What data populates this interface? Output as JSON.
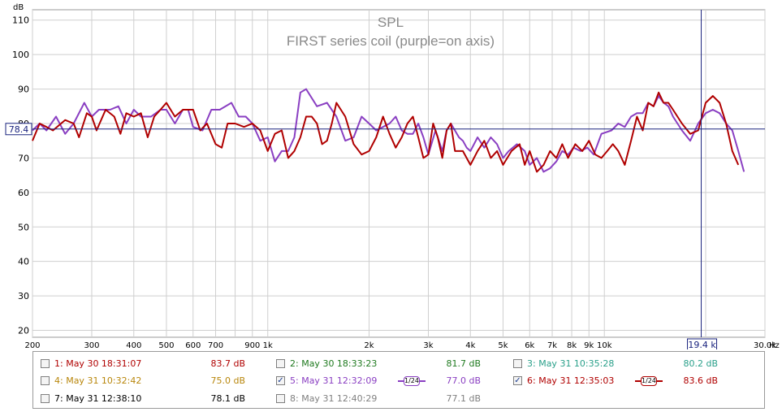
{
  "chart_data": {
    "type": "line",
    "title": "SPL",
    "subtitle": "FIRST series coil (purple=on axis)",
    "ylabel": "dB",
    "xlabel": "Hz",
    "x_scale": "log",
    "xlim": [
      200,
      30000
    ],
    "ylim": [
      18,
      113
    ],
    "y_ticks": [
      20,
      30,
      40,
      50,
      60,
      70,
      80,
      90,
      100,
      110
    ],
    "x_ticks": [
      {
        "v": 200,
        "label": "200"
      },
      {
        "v": 300,
        "label": "300"
      },
      {
        "v": 400,
        "label": "400"
      },
      {
        "v": 500,
        "label": "500"
      },
      {
        "v": 600,
        "label": "600"
      },
      {
        "v": 700,
        "label": "700"
      },
      {
        "v": 900,
        "label": "900"
      },
      {
        "v": 1000,
        "label": "1k"
      },
      {
        "v": 2000,
        "label": "2k"
      },
      {
        "v": 3000,
        "label": "3k"
      },
      {
        "v": 4000,
        "label": "4k"
      },
      {
        "v": 5000,
        "label": "5k"
      },
      {
        "v": 6000,
        "label": "6k"
      },
      {
        "v": 7000,
        "label": "7k"
      },
      {
        "v": 8000,
        "label": "8k"
      },
      {
        "v": 9000,
        "label": "9k"
      },
      {
        "v": 10000,
        "label": "10k"
      },
      {
        "v": 30000,
        "label": "30.0k"
      }
    ],
    "grid_x": [
      200,
      300,
      400,
      500,
      600,
      700,
      800,
      900,
      1000,
      2000,
      3000,
      4000,
      5000,
      6000,
      7000,
      8000,
      9000,
      10000,
      20000,
      30000
    ],
    "grid": true,
    "cursor": {
      "x": 19400,
      "y": 78.4,
      "x_label": "19.4 k",
      "y_label": "78.4"
    },
    "series": [
      {
        "name": "5: May 31 12:32:09",
        "color": "#8a3fc2",
        "points": [
          [
            200,
            78
          ],
          [
            210,
            80
          ],
          [
            220,
            78
          ],
          [
            235,
            82
          ],
          [
            250,
            77
          ],
          [
            265,
            80
          ],
          [
            285,
            86
          ],
          [
            300,
            82
          ],
          [
            315,
            84
          ],
          [
            340,
            84
          ],
          [
            360,
            85
          ],
          [
            380,
            80
          ],
          [
            400,
            84
          ],
          [
            420,
            82
          ],
          [
            450,
            82
          ],
          [
            480,
            84
          ],
          [
            500,
            84
          ],
          [
            530,
            80
          ],
          [
            560,
            84
          ],
          [
            580,
            84
          ],
          [
            600,
            79
          ],
          [
            640,
            78
          ],
          [
            680,
            84
          ],
          [
            720,
            84
          ],
          [
            780,
            86
          ],
          [
            820,
            82
          ],
          [
            860,
            82
          ],
          [
            900,
            80
          ],
          [
            950,
            75
          ],
          [
            1000,
            76
          ],
          [
            1050,
            69
          ],
          [
            1100,
            72
          ],
          [
            1150,
            72
          ],
          [
            1200,
            76
          ],
          [
            1250,
            89
          ],
          [
            1300,
            90
          ],
          [
            1400,
            85
          ],
          [
            1500,
            86
          ],
          [
            1600,
            82
          ],
          [
            1700,
            75
          ],
          [
            1800,
            76
          ],
          [
            1900,
            82
          ],
          [
            2000,
            80
          ],
          [
            2100,
            78
          ],
          [
            2200,
            79
          ],
          [
            2300,
            80
          ],
          [
            2400,
            82
          ],
          [
            2500,
            78
          ],
          [
            2600,
            77
          ],
          [
            2700,
            77
          ],
          [
            2800,
            80
          ],
          [
            2900,
            76
          ],
          [
            3000,
            71
          ],
          [
            3150,
            78
          ],
          [
            3300,
            72
          ],
          [
            3400,
            78
          ],
          [
            3500,
            80
          ],
          [
            3700,
            76
          ],
          [
            3800,
            75
          ],
          [
            3900,
            73
          ],
          [
            4000,
            72
          ],
          [
            4200,
            76
          ],
          [
            4400,
            73
          ],
          [
            4600,
            76
          ],
          [
            4800,
            74
          ],
          [
            5000,
            70
          ],
          [
            5200,
            72
          ],
          [
            5500,
            74
          ],
          [
            5800,
            72
          ],
          [
            6000,
            68
          ],
          [
            6300,
            70
          ],
          [
            6600,
            66
          ],
          [
            6900,
            67
          ],
          [
            7200,
            69
          ],
          [
            7500,
            72
          ],
          [
            7800,
            71
          ],
          [
            8100,
            73
          ],
          [
            8500,
            72
          ],
          [
            8900,
            73
          ],
          [
            9300,
            71
          ],
          [
            9800,
            77
          ],
          [
            10500,
            78
          ],
          [
            11000,
            80
          ],
          [
            11500,
            79
          ],
          [
            12000,
            82
          ],
          [
            12500,
            83
          ],
          [
            13000,
            83
          ],
          [
            13500,
            86
          ],
          [
            14000,
            85
          ],
          [
            14500,
            88
          ],
          [
            15000,
            86
          ],
          [
            15500,
            85
          ],
          [
            16000,
            82
          ],
          [
            17000,
            78
          ],
          [
            18000,
            75
          ],
          [
            19000,
            80
          ],
          [
            20000,
            83
          ],
          [
            21000,
            84
          ],
          [
            22000,
            83
          ],
          [
            23000,
            80
          ],
          [
            24000,
            78
          ],
          [
            25000,
            72
          ],
          [
            26000,
            66
          ]
        ]
      },
      {
        "name": "6: May 31 12:35:03",
        "color": "#b00000",
        "points": [
          [
            200,
            75
          ],
          [
            210,
            80
          ],
          [
            220,
            79
          ],
          [
            230,
            78
          ],
          [
            250,
            81
          ],
          [
            265,
            80
          ],
          [
            275,
            76
          ],
          [
            290,
            83
          ],
          [
            300,
            82
          ],
          [
            310,
            78
          ],
          [
            330,
            84
          ],
          [
            350,
            82
          ],
          [
            365,
            77
          ],
          [
            380,
            83
          ],
          [
            400,
            82
          ],
          [
            420,
            83
          ],
          [
            440,
            76
          ],
          [
            460,
            82
          ],
          [
            480,
            84
          ],
          [
            500,
            86
          ],
          [
            530,
            82
          ],
          [
            560,
            84
          ],
          [
            600,
            84
          ],
          [
            630,
            78
          ],
          [
            660,
            80
          ],
          [
            700,
            74
          ],
          [
            730,
            73
          ],
          [
            760,
            80
          ],
          [
            800,
            80
          ],
          [
            850,
            79
          ],
          [
            900,
            80
          ],
          [
            950,
            78
          ],
          [
            1000,
            72
          ],
          [
            1050,
            77
          ],
          [
            1100,
            78
          ],
          [
            1150,
            70
          ],
          [
            1200,
            72
          ],
          [
            1250,
            76
          ],
          [
            1300,
            82
          ],
          [
            1350,
            82
          ],
          [
            1400,
            80
          ],
          [
            1450,
            74
          ],
          [
            1500,
            75
          ],
          [
            1550,
            80
          ],
          [
            1600,
            86
          ],
          [
            1700,
            82
          ],
          [
            1800,
            74
          ],
          [
            1900,
            71
          ],
          [
            2000,
            72
          ],
          [
            2100,
            76
          ],
          [
            2200,
            82
          ],
          [
            2300,
            77
          ],
          [
            2400,
            73
          ],
          [
            2500,
            76
          ],
          [
            2600,
            80
          ],
          [
            2700,
            82
          ],
          [
            2800,
            76
          ],
          [
            2900,
            70
          ],
          [
            3000,
            71
          ],
          [
            3100,
            80
          ],
          [
            3200,
            76
          ],
          [
            3300,
            70
          ],
          [
            3400,
            78
          ],
          [
            3500,
            80
          ],
          [
            3600,
            72
          ],
          [
            3800,
            72
          ],
          [
            4000,
            68
          ],
          [
            4200,
            72
          ],
          [
            4400,
            75
          ],
          [
            4600,
            70
          ],
          [
            4800,
            72
          ],
          [
            5000,
            68
          ],
          [
            5300,
            72
          ],
          [
            5600,
            74
          ],
          [
            5800,
            68
          ],
          [
            6000,
            72
          ],
          [
            6300,
            66
          ],
          [
            6600,
            68
          ],
          [
            6900,
            72
          ],
          [
            7200,
            70
          ],
          [
            7500,
            74
          ],
          [
            7800,
            70
          ],
          [
            8200,
            74
          ],
          [
            8600,
            72
          ],
          [
            9000,
            75
          ],
          [
            9400,
            71
          ],
          [
            9800,
            70
          ],
          [
            10200,
            72
          ],
          [
            10600,
            74
          ],
          [
            11000,
            72
          ],
          [
            11500,
            68
          ],
          [
            12000,
            75
          ],
          [
            12500,
            82
          ],
          [
            13000,
            78
          ],
          [
            13500,
            86
          ],
          [
            14000,
            85
          ],
          [
            14500,
            89
          ],
          [
            15000,
            86
          ],
          [
            15500,
            86
          ],
          [
            16000,
            84
          ],
          [
            17000,
            80
          ],
          [
            18000,
            77
          ],
          [
            19000,
            78
          ],
          [
            20000,
            86
          ],
          [
            21000,
            88
          ],
          [
            22000,
            86
          ],
          [
            23000,
            80
          ],
          [
            24000,
            72
          ],
          [
            25000,
            68
          ]
        ]
      }
    ]
  },
  "legend": [
    {
      "label": "1: May 30 18:31:07",
      "value": "83.7 dB",
      "checked": false,
      "color": "#b00000",
      "value_color": "#b00000"
    },
    {
      "label": "2: May 30 18:33:23",
      "value": "81.7 dB",
      "checked": false,
      "color": "#1f7a1f",
      "value_color": "#1f7a1f"
    },
    {
      "label": "3: May 31 10:35:28",
      "value": "80.2 dB",
      "checked": false,
      "color": "#2aa08a",
      "value_color": "#2aa08a"
    },
    {
      "label": "4: May 31 10:32:42",
      "value": "75.0 dB",
      "checked": false,
      "color": "#b8860b",
      "value_color": "#b8860b"
    },
    {
      "label": "5: May 31 12:32:09",
      "value": "77.0 dB",
      "checked": true,
      "color": "#8a3fc2",
      "value_color": "#8a3fc2",
      "smoothing": "1/24"
    },
    {
      "label": "6: May 31 12:35:03",
      "value": "83.6 dB",
      "checked": true,
      "color": "#b00000",
      "value_color": "#b00000",
      "smoothing": "1/24"
    },
    {
      "label": "7: May 31 12:38:10",
      "value": "78.1 dB",
      "checked": false,
      "color": "#000000",
      "value_color": "#000000"
    },
    {
      "label": "8: May 31 12:40:29",
      "value": "77.1 dB",
      "checked": false,
      "color": "#808080",
      "value_color": "#808080"
    }
  ],
  "check_mark": "✓"
}
